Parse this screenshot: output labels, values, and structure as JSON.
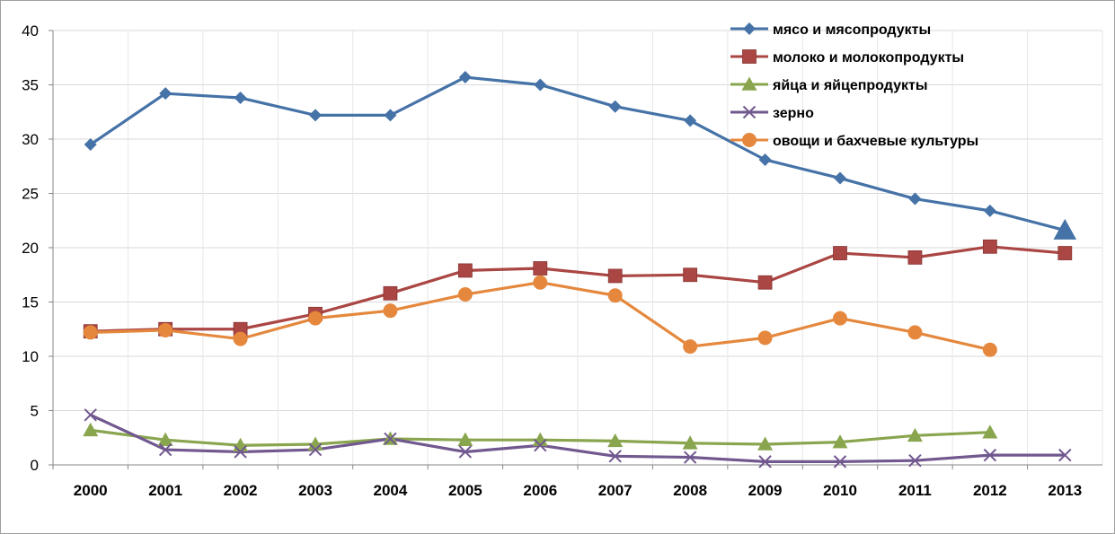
{
  "chart_data": {
    "type": "line",
    "title": "",
    "xlabel": "",
    "ylabel": "",
    "categories": [
      "2000",
      "2001",
      "2002",
      "2003",
      "2004",
      "2005",
      "2006",
      "2007",
      "2008",
      "2009",
      "2010",
      "2011",
      "2012",
      "2013"
    ],
    "ylim": [
      0,
      40
    ],
    "yticks": [
      0,
      5,
      10,
      15,
      20,
      25,
      30,
      35,
      40
    ],
    "grid": true,
    "legend_position": "top-right",
    "series": [
      {
        "name": "мясо и мясопродукты",
        "color": "#4572A7",
        "marker": "diamond",
        "last_marker": "triangle",
        "values": [
          29.5,
          34.2,
          33.8,
          32.2,
          32.2,
          35.7,
          35.0,
          33.0,
          31.7,
          28.1,
          26.4,
          24.5,
          23.4,
          21.6
        ]
      },
      {
        "name": "молоко и молокопродукты",
        "color": "#AA4643",
        "marker": "square",
        "values": [
          12.3,
          12.5,
          12.5,
          13.9,
          15.8,
          17.9,
          18.1,
          17.4,
          17.5,
          16.8,
          19.5,
          19.1,
          20.1,
          19.5
        ]
      },
      {
        "name": "яйца и яйцепродукты",
        "color": "#89A54E",
        "marker": "triangle",
        "values": [
          3.2,
          2.3,
          1.8,
          1.9,
          2.4,
          2.3,
          2.3,
          2.2,
          2.0,
          1.9,
          2.1,
          2.7,
          3.0,
          null
        ]
      },
      {
        "name": "зерно",
        "color": "#71588F",
        "marker": "x",
        "values": [
          4.6,
          1.4,
          1.2,
          1.4,
          2.4,
          1.2,
          1.8,
          0.8,
          0.7,
          0.3,
          0.3,
          0.4,
          0.9,
          0.9
        ]
      },
      {
        "name": "овощи и бахчевые культуры",
        "color": "#E5883D",
        "marker": "circle",
        "values": [
          12.2,
          12.4,
          11.6,
          13.5,
          14.2,
          15.7,
          16.8,
          15.6,
          10.9,
          11.7,
          13.5,
          12.2,
          10.6,
          null
        ]
      }
    ]
  }
}
